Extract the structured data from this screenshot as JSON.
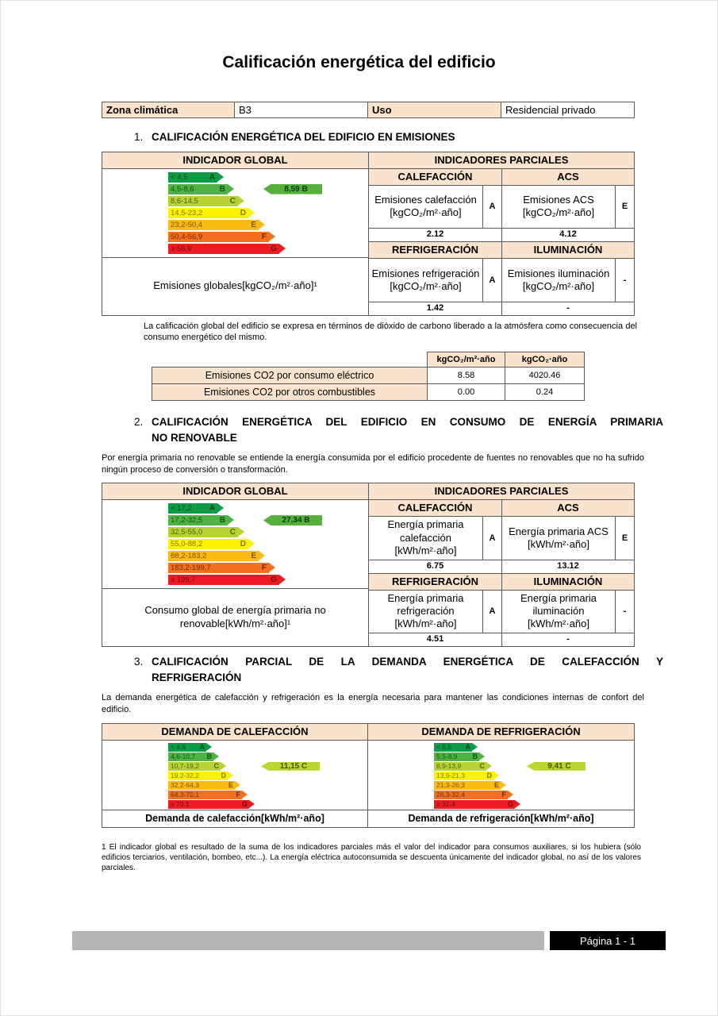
{
  "title": "Calificación energética del edificio",
  "info_bar": {
    "zona_label": "Zona climática",
    "zona_value": "B3",
    "uso_label": "Uso",
    "uso_value": "Residencial privado"
  },
  "s1": {
    "number": "1.",
    "heading": "CALIFICACIÓN ENERGÉTICA DEL EDIFICIO EN EMISIONES",
    "global_header": "INDICADOR GLOBAL",
    "partial_header": "INDICADORES PARCIALES",
    "scale": {
      "bands": [
        {
          "range": "< 4,5",
          "letter": "A"
        },
        {
          "range": "4,5-8,6",
          "letter": "B"
        },
        {
          "range": "8,6-14,5",
          "letter": "C"
        },
        {
          "range": "14,5-23,2",
          "letter": "D"
        },
        {
          "range": "23,2-50,4",
          "letter": "E"
        },
        {
          "range": "50,4-56,9",
          "letter": "F"
        },
        {
          "range": "≥ 56,9",
          "letter": "G"
        }
      ],
      "value": "8,59 B",
      "value_class": "B"
    },
    "global_label": "Emisiones globales[kgCO₂/m²·año]¹",
    "partials": [
      {
        "header": "CALEFACCIÓN",
        "label": "Emisiones calefacción [kgCO₂/m²·año]",
        "letter": "A",
        "value": "2.12"
      },
      {
        "header": "ACS",
        "label": "Emisiones ACS [kgCO₂/m²·año]",
        "letter": "E",
        "value": "4.12"
      },
      {
        "header": "REFRIGERACIÓN",
        "label": "Emisiones refrigeración [kgCO₂/m²·año]",
        "letter": "A",
        "value": "1.42"
      },
      {
        "header": "ILUMINACIÓN",
        "label": "Emisiones iluminación [kgCO₂/m²·año]",
        "letter": "-",
        "value": "-"
      }
    ],
    "note": "La calificación global del edificio se expresa en términos de dióxido de carbono liberado a la atmósfera como consecuencia del consumo energético del mismo.",
    "co2_table": {
      "col1_header": "kgCO₂/m²·año",
      "col2_header": "kgCO₂·año",
      "rows": [
        {
          "label": "Emisiones CO2 por consumo eléctrico",
          "per_m2": "8.58",
          "total": "4020.46"
        },
        {
          "label": "Emisiones CO2 por otros combustibles",
          "per_m2": "0.00",
          "total": "0.24"
        }
      ]
    }
  },
  "s2": {
    "number": "2.",
    "heading_line1": "CALIFICACIÓN ENERGÉTICA DEL EDIFICIO EN CONSUMO DE ENERGÍA PRIMARIA",
    "heading_line2": "NO RENOVABLE",
    "intro": "Por energía primaria no renovable se entiende la energía consumida por el edificio procedente de fuentes no renovables que no ha sufrido ningún proceso de conversión o transformación.",
    "global_header": "INDICADOR GLOBAL",
    "partial_header": "INDICADORES PARCIALES",
    "scale": {
      "bands": [
        {
          "range": "< 17,2",
          "letter": "A"
        },
        {
          "range": "17,2-32,5",
          "letter": "B"
        },
        {
          "range": "32,5-55,0",
          "letter": "C"
        },
        {
          "range": "55,0-88,2",
          "letter": "D"
        },
        {
          "range": "88,2-183,2",
          "letter": "E"
        },
        {
          "range": "183,2-199,7",
          "letter": "F"
        },
        {
          "range": "≥ 199,7",
          "letter": "G"
        }
      ],
      "value": "27,34 B",
      "value_class": "B"
    },
    "global_label": "Consumo global de energía primaria no renovable[kWh/m²·año]¹",
    "partials": [
      {
        "header": "CALEFACCIÓN",
        "label": "Energía primaria calefacción [kWh/m²·año]",
        "letter": "A",
        "value": "6.75"
      },
      {
        "header": "ACS",
        "label": "Energía primaria ACS [kWh/m²·año]",
        "letter": "E",
        "value": "13.12"
      },
      {
        "header": "REFRIGERACIÓN",
        "label": "Energía primaria refrigeración [kWh/m²·año]",
        "letter": "A",
        "value": "4.51"
      },
      {
        "header": "ILUMINACIÓN",
        "label": "Energía primaria iluminación [kWh/m²·año]",
        "letter": "-",
        "value": "-"
      }
    ]
  },
  "s3": {
    "number": "3.",
    "heading_line1": "CALIFICACIÓN PARCIAL DE LA DEMANDA ENERGÉTICA DE CALEFACCIÓN Y",
    "heading_line2": "REFRIGERACIÓN",
    "intro": "La demanda energética de calefacción y refrigeración es la energía necesaria para mantener las condiciones internas de confort del edificio.",
    "heating": {
      "header": "DEMANDA DE CALEFACCIÓN",
      "bands": [
        {
          "range": "< 4,6",
          "letter": "A"
        },
        {
          "range": "4,6-10,7",
          "letter": "B"
        },
        {
          "range": "10,7-19,2",
          "letter": "C"
        },
        {
          "range": "19,2-32,2",
          "letter": "D"
        },
        {
          "range": "32,2-64,3",
          "letter": "E"
        },
        {
          "range": "64,3-70,1",
          "letter": "F"
        },
        {
          "range": "≥ 70,1",
          "letter": "G"
        }
      ],
      "value": "11,15 C",
      "value_class": "C",
      "footer": "Demanda de calefacción[kWh/m²·año]"
    },
    "cooling": {
      "header": "DEMANDA DE REFRIGERACIÓN",
      "bands": [
        {
          "range": "< 5,5",
          "letter": "A"
        },
        {
          "range": "5,5-8,9",
          "letter": "B"
        },
        {
          "range": "8,9-13,9",
          "letter": "C"
        },
        {
          "range": "13,9-21,3",
          "letter": "D"
        },
        {
          "range": "21,3-26,3",
          "letter": "E"
        },
        {
          "range": "26,3-32,4",
          "letter": "F"
        },
        {
          "range": "≥ 32,4",
          "letter": "G"
        }
      ],
      "value": "9,41 C",
      "value_class": "C",
      "footer": "Demanda de refrigeración[kWh/m²·año]"
    }
  },
  "footnote": "1 El indicador global es resultado de la suma de los indicadores parciales más el valor del indicador para consumos auxiliares, si los hubiera (sólo edificios terciarios, ventilación, bombeo, etc...). La energía eléctrica autoconsumida se descuenta únicamente del indicador global, no así de los valores parciales.",
  "page_footer": {
    "label": "Página 1 - 1"
  },
  "colors": {
    "table_header_bg": "#fae3cd",
    "table_border": "#5a5a5a",
    "band_a": "#0c9c46",
    "band_b": "#4fb244",
    "band_c": "#b6d333",
    "band_d": "#fef102",
    "band_e": "#fbba14",
    "band_f": "#f3701e",
    "band_g": "#ed1c24",
    "marker_b": "#55b13c",
    "marker_c": "#bcd631",
    "footer_bar": "#b5b5b5",
    "footer_box": "#000000"
  }
}
